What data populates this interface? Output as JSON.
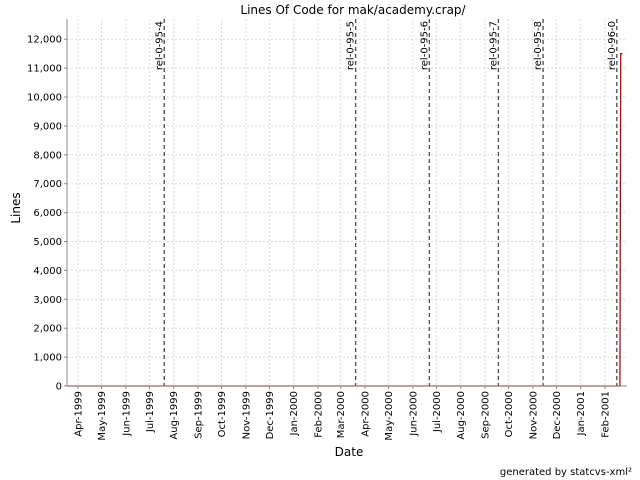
{
  "chart_data": {
    "type": "line",
    "title": "Lines Of Code for mak/academy.crap/",
    "xlabel": "Date",
    "ylabel": "Lines",
    "yticks": [
      0,
      1000,
      2000,
      3000,
      4000,
      5000,
      6000,
      7000,
      8000,
      9000,
      10000,
      11000,
      12000
    ],
    "ytick_labels": [
      "0",
      "1,000",
      "2,000",
      "3,000",
      "4,000",
      "5,000",
      "6,000",
      "7,000",
      "8,000",
      "9,000",
      "10,000",
      "11,000",
      "12,000"
    ],
    "ylim": [
      0,
      12700
    ],
    "xlim": [
      "1999-03-18",
      "2001-03-01"
    ],
    "x_ticks": [
      {
        "date": "1999-04-01",
        "label": "Apr-1999"
      },
      {
        "date": "1999-05-01",
        "label": "May-1999"
      },
      {
        "date": "1999-06-01",
        "label": "Jun-1999"
      },
      {
        "date": "1999-07-01",
        "label": "Jul-1999"
      },
      {
        "date": "1999-08-01",
        "label": "Aug-1999"
      },
      {
        "date": "1999-09-01",
        "label": "Sep-1999"
      },
      {
        "date": "1999-10-01",
        "label": "Oct-1999"
      },
      {
        "date": "1999-11-01",
        "label": "Nov-1999"
      },
      {
        "date": "1999-12-01",
        "label": "Dec-1999"
      },
      {
        "date": "2000-01-01",
        "label": "Jan-2000"
      },
      {
        "date": "2000-02-01",
        "label": "Feb-2000"
      },
      {
        "date": "2000-03-01",
        "label": "Mar-2000"
      },
      {
        "date": "2000-04-01",
        "label": "Apr-2000"
      },
      {
        "date": "2000-05-01",
        "label": "May-2000"
      },
      {
        "date": "2000-06-01",
        "label": "Jun-2000"
      },
      {
        "date": "2000-07-01",
        "label": "Jul-2000"
      },
      {
        "date": "2000-08-01",
        "label": "Aug-2000"
      },
      {
        "date": "2000-09-01",
        "label": "Sep-2000"
      },
      {
        "date": "2000-10-01",
        "label": "Oct-2000"
      },
      {
        "date": "2000-11-01",
        "label": "Nov-2000"
      },
      {
        "date": "2000-12-01",
        "label": "Dec-2000"
      },
      {
        "date": "2001-01-01",
        "label": "Jan-2001"
      },
      {
        "date": "2001-02-01",
        "label": "Feb-2001"
      }
    ],
    "markers": [
      {
        "label": "rel-0-95-4",
        "date": "1999-07-20"
      },
      {
        "label": "rel-0-95-5",
        "date": "2000-03-20"
      },
      {
        "label": "rel-0-95-6",
        "date": "2000-06-22"
      },
      {
        "label": "rel-0-95-7",
        "date": "2000-09-18"
      },
      {
        "label": "rel-0-95-8",
        "date": "2000-11-14"
      },
      {
        "label": "rel-0-96-0",
        "date": "2001-02-16"
      }
    ],
    "series": [
      {
        "color": "#cc0000",
        "points": [
          {
            "date": "1999-03-18",
            "y": 0
          },
          {
            "date": "2001-02-20",
            "y": 0
          },
          {
            "date": "2001-02-21",
            "y": 11500
          },
          {
            "date": "2001-02-23",
            "y": 11500
          }
        ]
      }
    ],
    "grid": true,
    "legend": "none",
    "colors": {
      "line": "#cc0000",
      "grid": "#d8d8d8",
      "marker": "#555555",
      "axis": "#888888"
    }
  },
  "footer": "generated by statcvs-xml²"
}
